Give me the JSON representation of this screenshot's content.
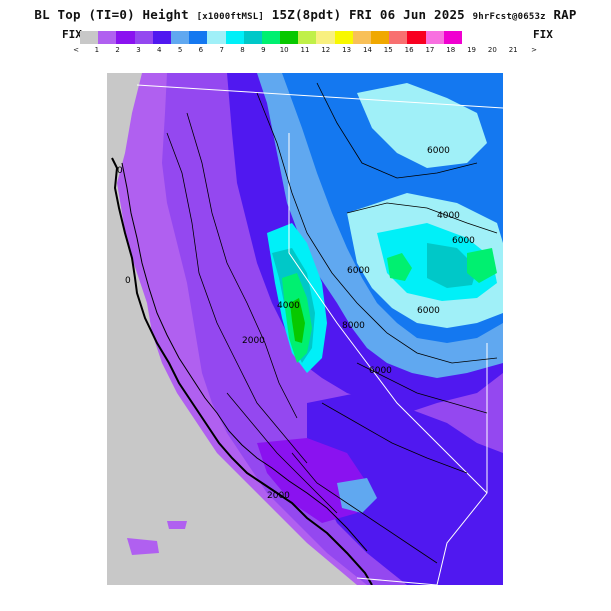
{
  "header": {
    "title_main": "BL Top (TI=0) Height",
    "title_units": "[x1000ftMSL]",
    "title_time": "15Z(8pdt) FRI 06 Jun 2025",
    "title_fcst": "9hrFcst@0653z",
    "title_model": "RAP"
  },
  "colorbar": {
    "left_label": "FIX",
    "right_label": "FIX",
    "colors": [
      "#c8c8c8",
      "#b060f0",
      "#8a12f0",
      "#9448f0",
      "#5018f0",
      "#60a8f0",
      "#1478f0",
      "#a0f0f8",
      "#00f0f8",
      "#00c8c8",
      "#00f070",
      "#08c800",
      "#c0f048",
      "#f8f080",
      "#f8f800",
      "#f8c058",
      "#f0a800",
      "#f87070",
      "#f80020",
      "#f870e0",
      "#f000d0"
    ],
    "tick_labels": [
      "<",
      "1",
      "2",
      "3",
      "4",
      "5",
      "6",
      "7",
      "8",
      "9",
      "10",
      "11",
      "12",
      "13",
      "14",
      "15",
      "16",
      "17",
      "18",
      "19",
      "20",
      "21",
      ">"
    ]
  },
  "map": {
    "region": "California / Nevada",
    "background_color": "#c8c8c8",
    "contour_labels": [
      "0",
      "0",
      "2000",
      "2000",
      "4000",
      "4000",
      "6000",
      "6000",
      "6000",
      "6000",
      "6000",
      "8000"
    ]
  }
}
